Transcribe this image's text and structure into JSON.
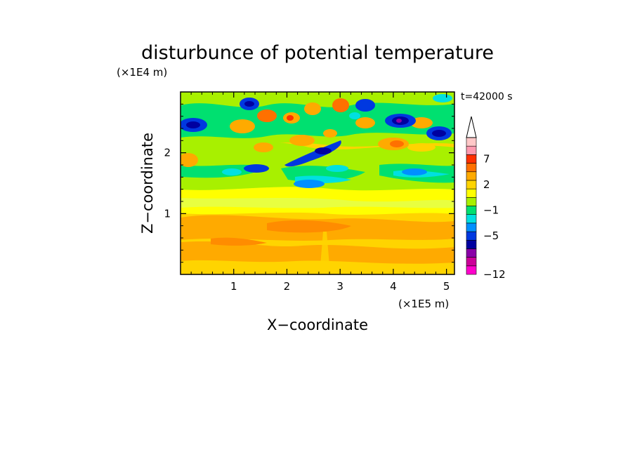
{
  "chart_data": {
    "type": "heatmap",
    "title": "disturbunce of potential temperature",
    "time_label": "t=42000 s",
    "xlabel": "X−coordinate",
    "ylabel": "Z−coordinate",
    "x_unit": "(×1E5 m)",
    "y_unit": "(×1E4 m)",
    "xlim": [
      0,
      5.15
    ],
    "ylim": [
      0,
      3.0
    ],
    "x_ticks": [
      {
        "value": 1,
        "label": "1"
      },
      {
        "value": 2,
        "label": "2"
      },
      {
        "value": 3,
        "label": "3"
      },
      {
        "value": 4,
        "label": "4"
      },
      {
        "value": 5,
        "label": "5"
      }
    ],
    "y_ticks": [
      {
        "value": 1,
        "label": "1"
      },
      {
        "value": 2,
        "label": "2"
      }
    ],
    "colorbar": {
      "levels": [
        "−12",
        "−5",
        "−1",
        "2",
        "7"
      ],
      "colors": [
        "#ff00cc",
        "#cc0099",
        "#8a00a8",
        "#0000a0",
        "#0038e0",
        "#0090ff",
        "#00e0e0",
        "#00e070",
        "#a8f000",
        "#ffff00",
        "#ffd400",
        "#ffaa00",
        "#ff7000",
        "#ff3000",
        "#ff9ab0",
        "#ffc8c8"
      ],
      "extend": "max"
    }
  }
}
